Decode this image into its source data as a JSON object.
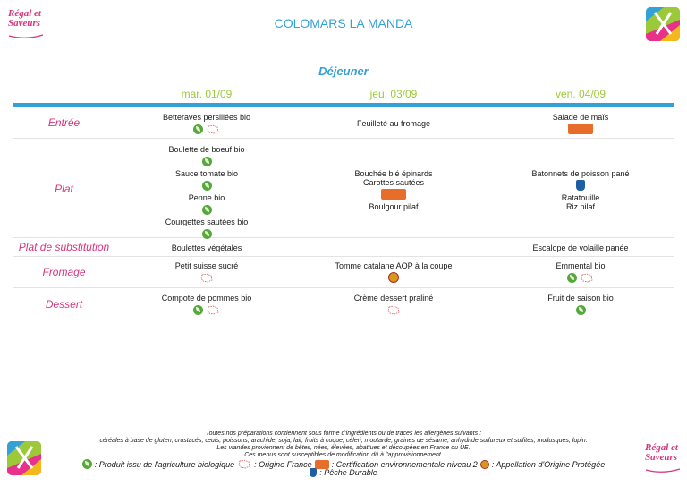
{
  "brand": {
    "line1": "Régal et",
    "line2": "Saveurs"
  },
  "title": "COLOMARS LA MANDA",
  "meal": "Déjeuner",
  "days": [
    "mar. 01/09",
    "jeu. 03/09",
    "ven. 04/09"
  ],
  "rows": {
    "entree": {
      "label": "Entrée",
      "d1": [
        {
          "text": "Betteraves persillées bio",
          "icons": [
            "bio-icon",
            "origine-france-icon"
          ]
        }
      ],
      "d2": [
        {
          "text": "Feuilleté au fromage",
          "icons": []
        }
      ],
      "d3": [
        {
          "text": "Salade de maïs",
          "icons": [
            "hve-icon"
          ]
        }
      ]
    },
    "plat": {
      "label": "Plat",
      "d1": [
        {
          "text": "Boulette de boeuf bio",
          "icons": [
            "bio-icon"
          ]
        },
        {
          "text": "Sauce tomate bio",
          "icons": [
            "bio-icon"
          ]
        },
        {
          "text": "Penne bio",
          "icons": [
            "bio-icon"
          ]
        },
        {
          "text": "Courgettes sautées bio",
          "icons": [
            "bio-icon"
          ]
        }
      ],
      "d2": [
        {
          "text": "Bouchée blé épinards",
          "icons": []
        },
        {
          "text": "Carottes sautées",
          "icons": [
            "hve-icon"
          ]
        },
        {
          "text": "Boulgour pilaf",
          "icons": []
        }
      ],
      "d3": [
        {
          "text": "Batonnets de poisson pané",
          "icons": [
            "msc-icon"
          ]
        },
        {
          "text": "Ratatouille",
          "icons": []
        },
        {
          "text": "Riz pilaf",
          "icons": []
        }
      ]
    },
    "substitution": {
      "label": "Plat de substitution",
      "d1": [
        {
          "text": "Boulettes végétales",
          "icons": []
        }
      ],
      "d2": [],
      "d3": [
        {
          "text": "Escalope de volaille panée",
          "icons": []
        }
      ]
    },
    "fromage": {
      "label": "Fromage",
      "d1": [
        {
          "text": "Petit suisse sucré",
          "icons": [
            "origine-france-icon"
          ]
        }
      ],
      "d2": [
        {
          "text": "Tomme catalane AOP à la coupe",
          "icons": [
            "aop-icon"
          ]
        }
      ],
      "d3": [
        {
          "text": "Emmental bio",
          "icons": [
            "bio-icon",
            "origine-france-icon"
          ]
        }
      ]
    },
    "dessert": {
      "label": "Dessert",
      "d1": [
        {
          "text": "Compote de pommes bio",
          "icons": [
            "bio-icon",
            "origine-france-icon"
          ]
        }
      ],
      "d2": [
        {
          "text": "Crème dessert praliné",
          "icons": [
            "origine-france-icon"
          ]
        }
      ],
      "d3": [
        {
          "text": "Fruit de saison bio",
          "icons": [
            "bio-icon"
          ]
        }
      ]
    }
  },
  "footer": {
    "l1": "Toutes nos préparations contiennent sous forme d'ingrédients ou de traces les allergènes suivants :",
    "l2": "céréales à base de gluten, crustacés, œufs, poissons, arachide, soja, lait, fruits à coque, céleri, moutarde, graines de sésame, anhydride sulfureux et sulfites, mollusques, lupin.",
    "l3": "Les viandes proviennent de bêtes, nées, élevées, abattues et découpées en France ou UE.",
    "l4": "Ces menus sont susceptibles de modification dû à l'approvisionnement.",
    "legend_bio": ": Produit issu de l'agriculture biologique",
    "legend_fr": ": Origine France",
    "legend_hve": ": Certification environnementale niveau 2",
    "legend_aop": ": Appellation d'Origine Protégée",
    "legend_msc": ": Pêche Durable"
  },
  "colors": {
    "accent": "#33a0d6",
    "day": "#9cc93a",
    "category": "#d6357e"
  }
}
